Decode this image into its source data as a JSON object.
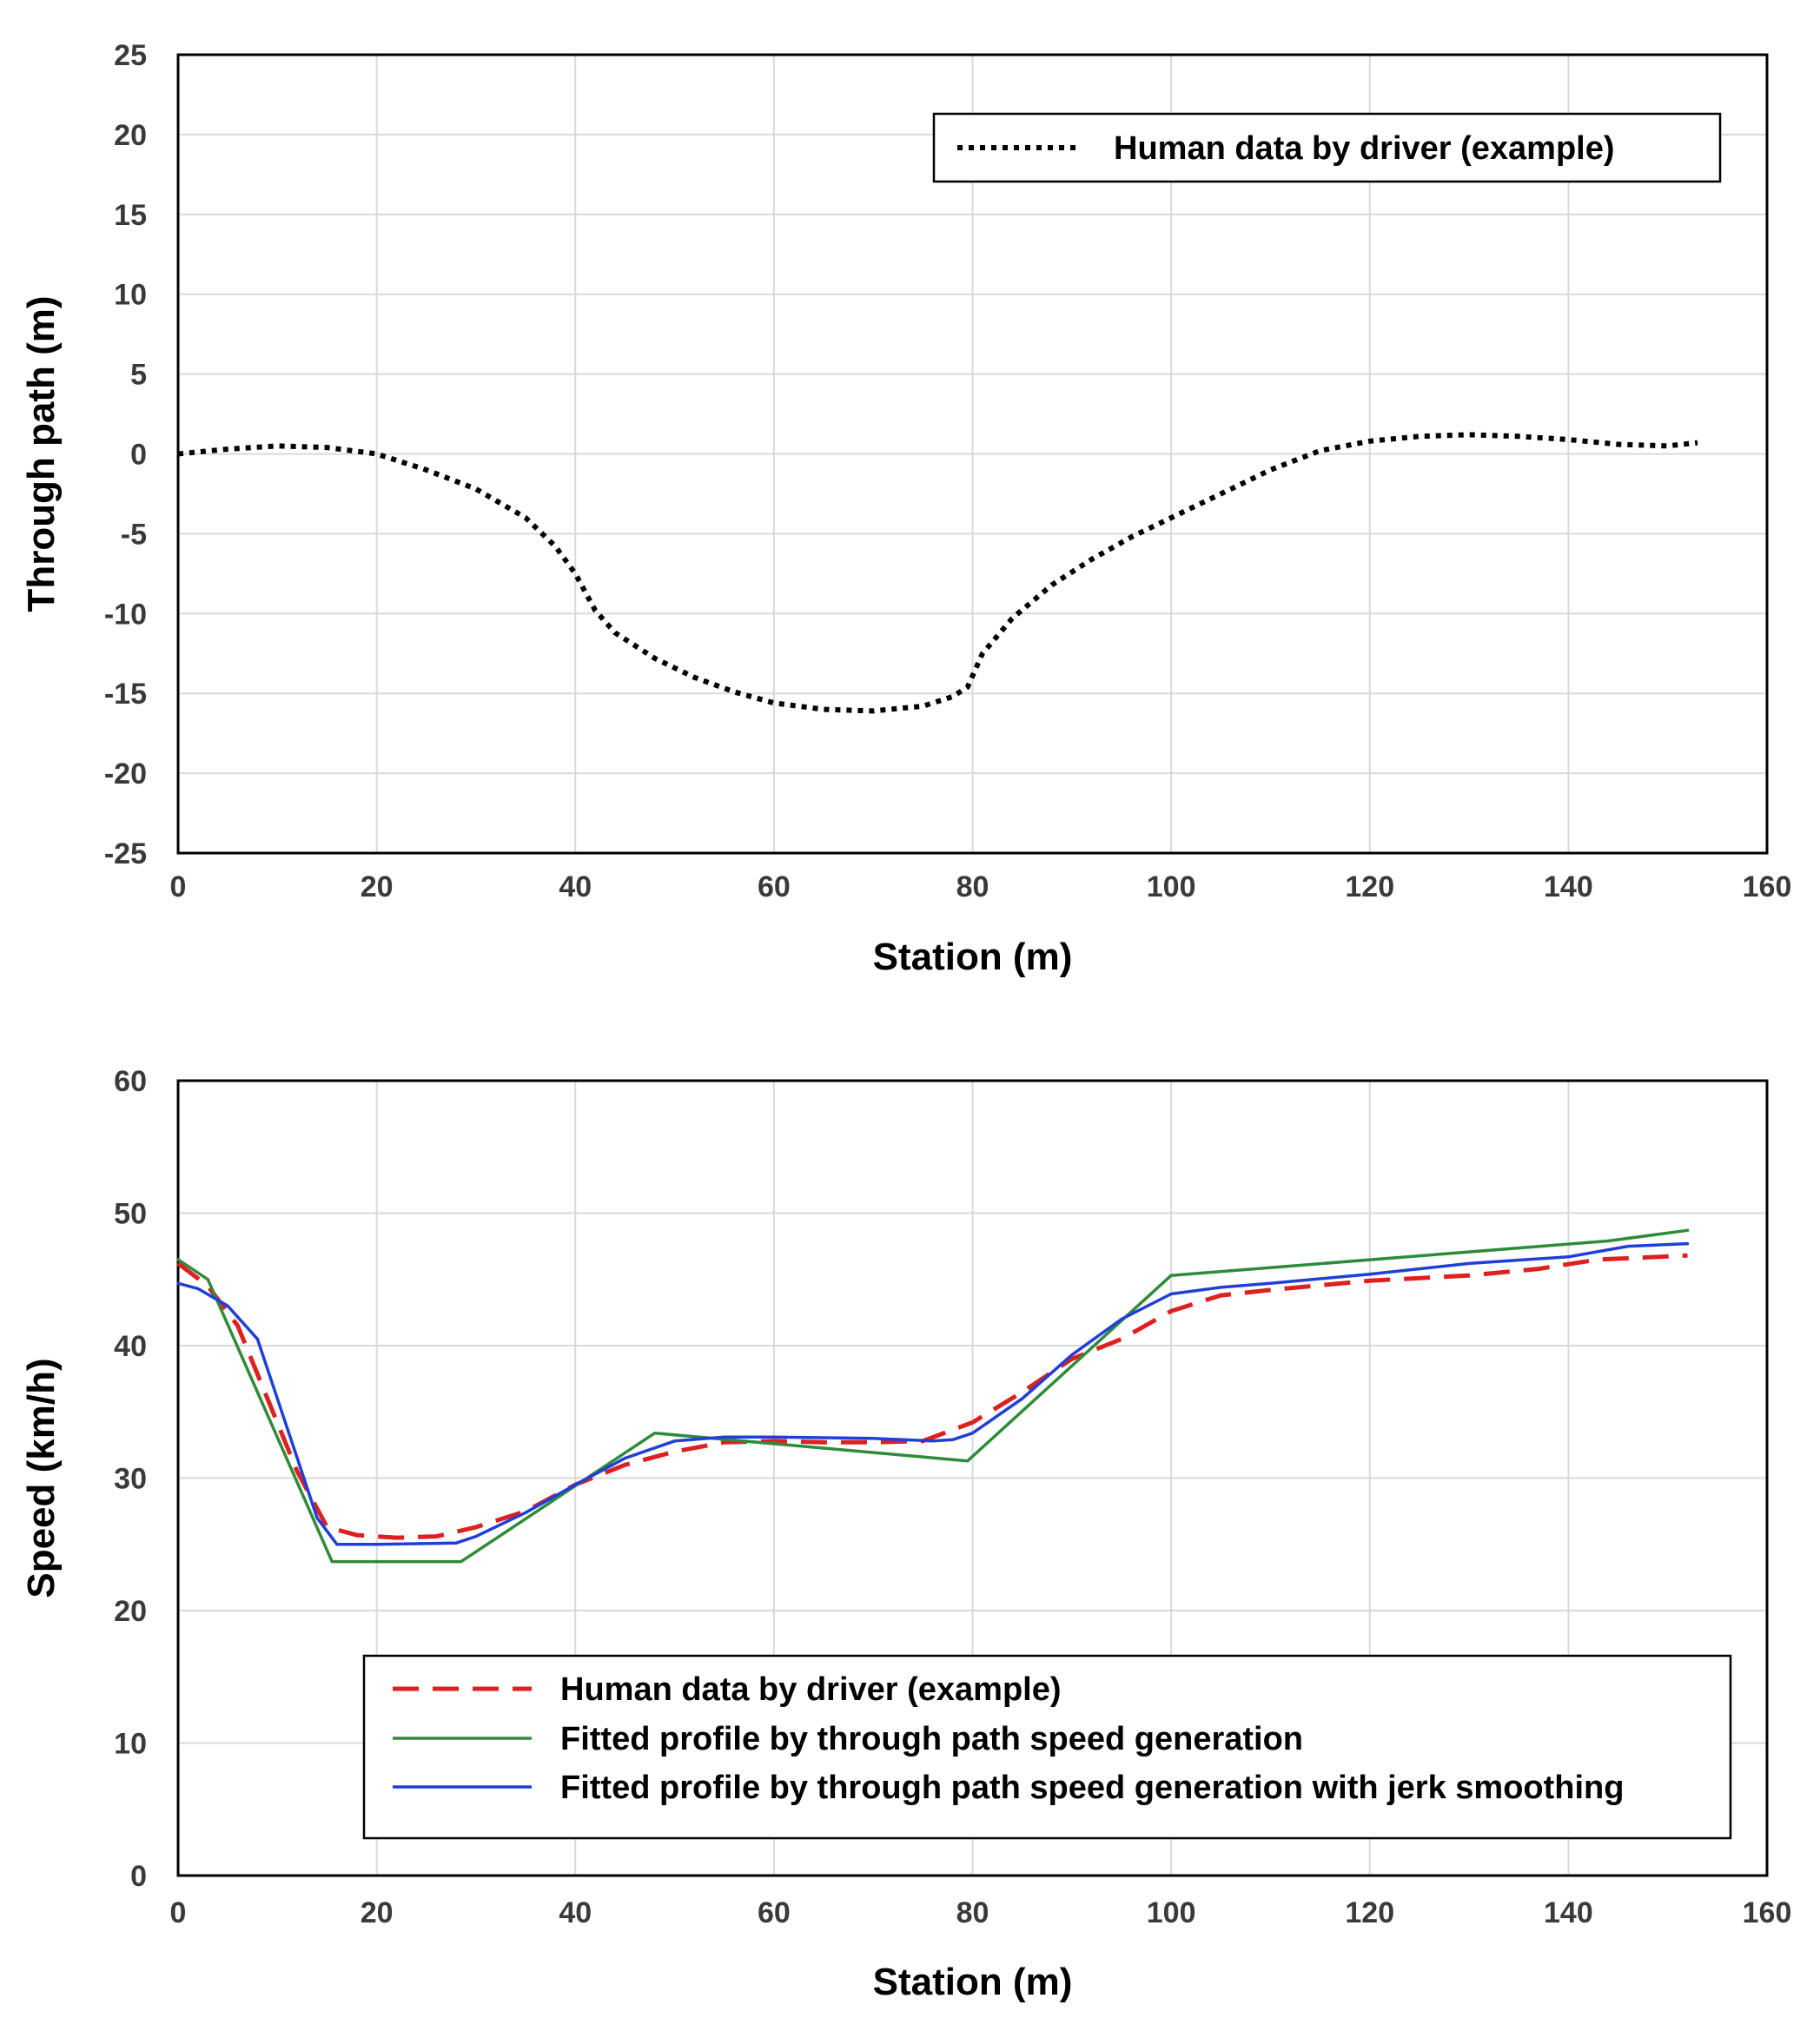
{
  "chart_data": [
    {
      "type": "line",
      "title": "",
      "xlabel": "Station (m)",
      "ylabel": "Through path (m)",
      "xlim": [
        0,
        160
      ],
      "ylim": [
        -25,
        25
      ],
      "xticks": [
        0,
        20,
        40,
        60,
        80,
        100,
        120,
        140,
        160
      ],
      "yticks": [
        25,
        20,
        15,
        10,
        5,
        0,
        -5,
        -10,
        -15,
        -20,
        -25
      ],
      "xtick_labels": [
        "0",
        "20",
        "40",
        "60",
        "80",
        "100",
        "120",
        "140",
        "160"
      ],
      "ytick_labels": [
        "25",
        "20",
        "15",
        "10",
        "5",
        "0",
        "-5",
        "-10",
        "-15",
        "-20",
        "-25"
      ],
      "grid": true,
      "legend_position": "top-right",
      "series": [
        {
          "name": "Human data by driver (example)",
          "color": "#000000",
          "style": "dotted",
          "x": [
            0,
            5,
            10,
            15,
            20,
            25,
            30,
            35,
            38,
            40,
            42,
            44,
            48,
            52,
            56,
            60,
            65,
            70,
            75,
            78,
            79.5,
            81,
            84,
            88,
            92,
            96,
            100,
            105,
            110,
            115,
            120,
            125,
            130,
            135,
            140,
            145,
            150,
            153
          ],
          "values": [
            0,
            0.3,
            0.5,
            0.4,
            0,
            -1,
            -2.2,
            -4,
            -5.8,
            -7.5,
            -9.8,
            -11.2,
            -12.8,
            -14,
            -14.9,
            -15.6,
            -16,
            -16.1,
            -15.8,
            -15.2,
            -14.6,
            -12.5,
            -10.3,
            -8.2,
            -6.6,
            -5.2,
            -4,
            -2.5,
            -1,
            0.2,
            0.8,
            1.1,
            1.2,
            1.1,
            0.9,
            0.6,
            0.5,
            0.7
          ]
        }
      ]
    },
    {
      "type": "line",
      "title": "",
      "xlabel": "Station (m)",
      "ylabel": "Speed (km/h)",
      "xlim": [
        0,
        160
      ],
      "ylim": [
        0,
        60
      ],
      "xticks": [
        0,
        20,
        40,
        60,
        80,
        100,
        120,
        140,
        160
      ],
      "yticks": [
        60,
        50,
        40,
        30,
        20,
        10,
        0
      ],
      "xtick_labels": [
        "0",
        "20",
        "40",
        "60",
        "80",
        "100",
        "120",
        "140",
        "160"
      ],
      "ytick_labels": [
        "60",
        "50",
        "40",
        "30",
        "20",
        "10",
        "0"
      ],
      "grid": true,
      "legend_position": "bottom-right",
      "series": [
        {
          "name": "Human data by driver (example)",
          "color": "#dd2020",
          "style": "dashed",
          "x": [
            0,
            3,
            6,
            9,
            12,
            15,
            18,
            22,
            26,
            30,
            35,
            40,
            45,
            50,
            55,
            60,
            65,
            70,
            75,
            80,
            85,
            90,
            95,
            100,
            105,
            110,
            120,
            130,
            137,
            143,
            152
          ],
          "values": [
            46.2,
            44.5,
            41.5,
            36,
            30.5,
            26.3,
            25.7,
            25.5,
            25.6,
            26.3,
            27.5,
            29.5,
            31,
            32,
            32.7,
            32.8,
            32.7,
            32.7,
            32.8,
            34.2,
            36.5,
            39,
            40.5,
            42.6,
            43.8,
            44.2,
            44.9,
            45.3,
            45.8,
            46.5,
            46.8
          ]
        },
        {
          "name": "Fitted profile by through path speed generation",
          "color": "#2e8b3a",
          "style": "solid",
          "x": [
            0,
            3,
            15.5,
            28.5,
            48,
            79.5,
            100,
            144,
            152
          ],
          "values": [
            46.5,
            45,
            23.7,
            23.7,
            33.4,
            31.3,
            45.3,
            47.9,
            48.7
          ]
        },
        {
          "name": "Fitted profile by through path speed generation with jerk smoothing",
          "color": "#1f3fd8",
          "style": "solid",
          "x": [
            0,
            2,
            5,
            8,
            10,
            12,
            14,
            16,
            20,
            28,
            30,
            35,
            40,
            45,
            50,
            55,
            60,
            70,
            76,
            78,
            80,
            85,
            90,
            95,
            100,
            105,
            110,
            120,
            130,
            140,
            146,
            152
          ],
          "values": [
            44.7,
            44.3,
            43,
            40.5,
            36,
            31.5,
            27,
            25,
            25,
            25.1,
            25.6,
            27.4,
            29.5,
            31.5,
            32.8,
            33.1,
            33.1,
            33,
            32.8,
            32.9,
            33.4,
            36,
            39.3,
            42,
            43.9,
            44.4,
            44.7,
            45.4,
            46.2,
            46.7,
            47.5,
            47.7
          ]
        }
      ]
    }
  ]
}
